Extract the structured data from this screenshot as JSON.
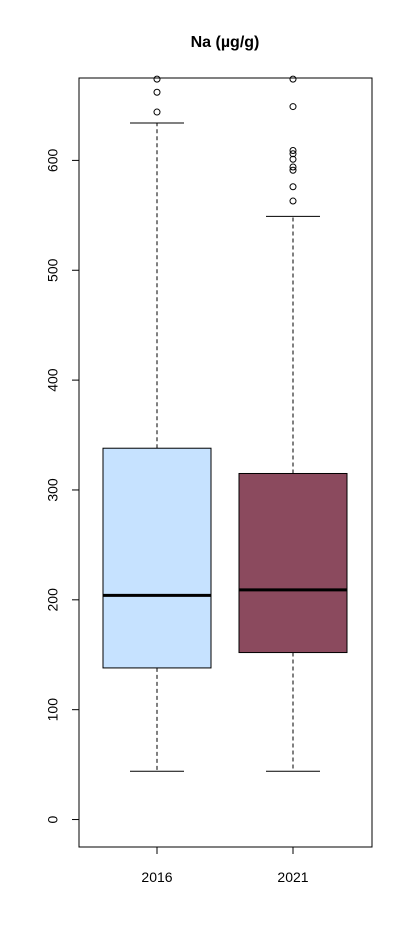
{
  "chart_data": {
    "type": "boxplot",
    "title": "Na (µg/g)",
    "xlabel": "",
    "ylabel": "",
    "categories": [
      "2016",
      "2021"
    ],
    "ylim": [
      -25,
      675
    ],
    "yticks": [
      0,
      100,
      200,
      300,
      400,
      500,
      600
    ],
    "grid": false,
    "boxes": [
      {
        "name": "2016",
        "color": "#c6e2ff",
        "whisker_low": 44,
        "q1": 138,
        "median": 204,
        "q3": 338,
        "whisker_high": 634,
        "outliers": [
          644,
          662,
          674
        ]
      },
      {
        "name": "2021",
        "color": "#8b4a5e",
        "whisker_low": 44,
        "q1": 152,
        "median": 209,
        "q3": 315,
        "whisker_high": 549,
        "outliers": [
          563,
          576,
          591,
          594,
          601,
          606,
          609,
          649,
          674
        ]
      }
    ]
  }
}
